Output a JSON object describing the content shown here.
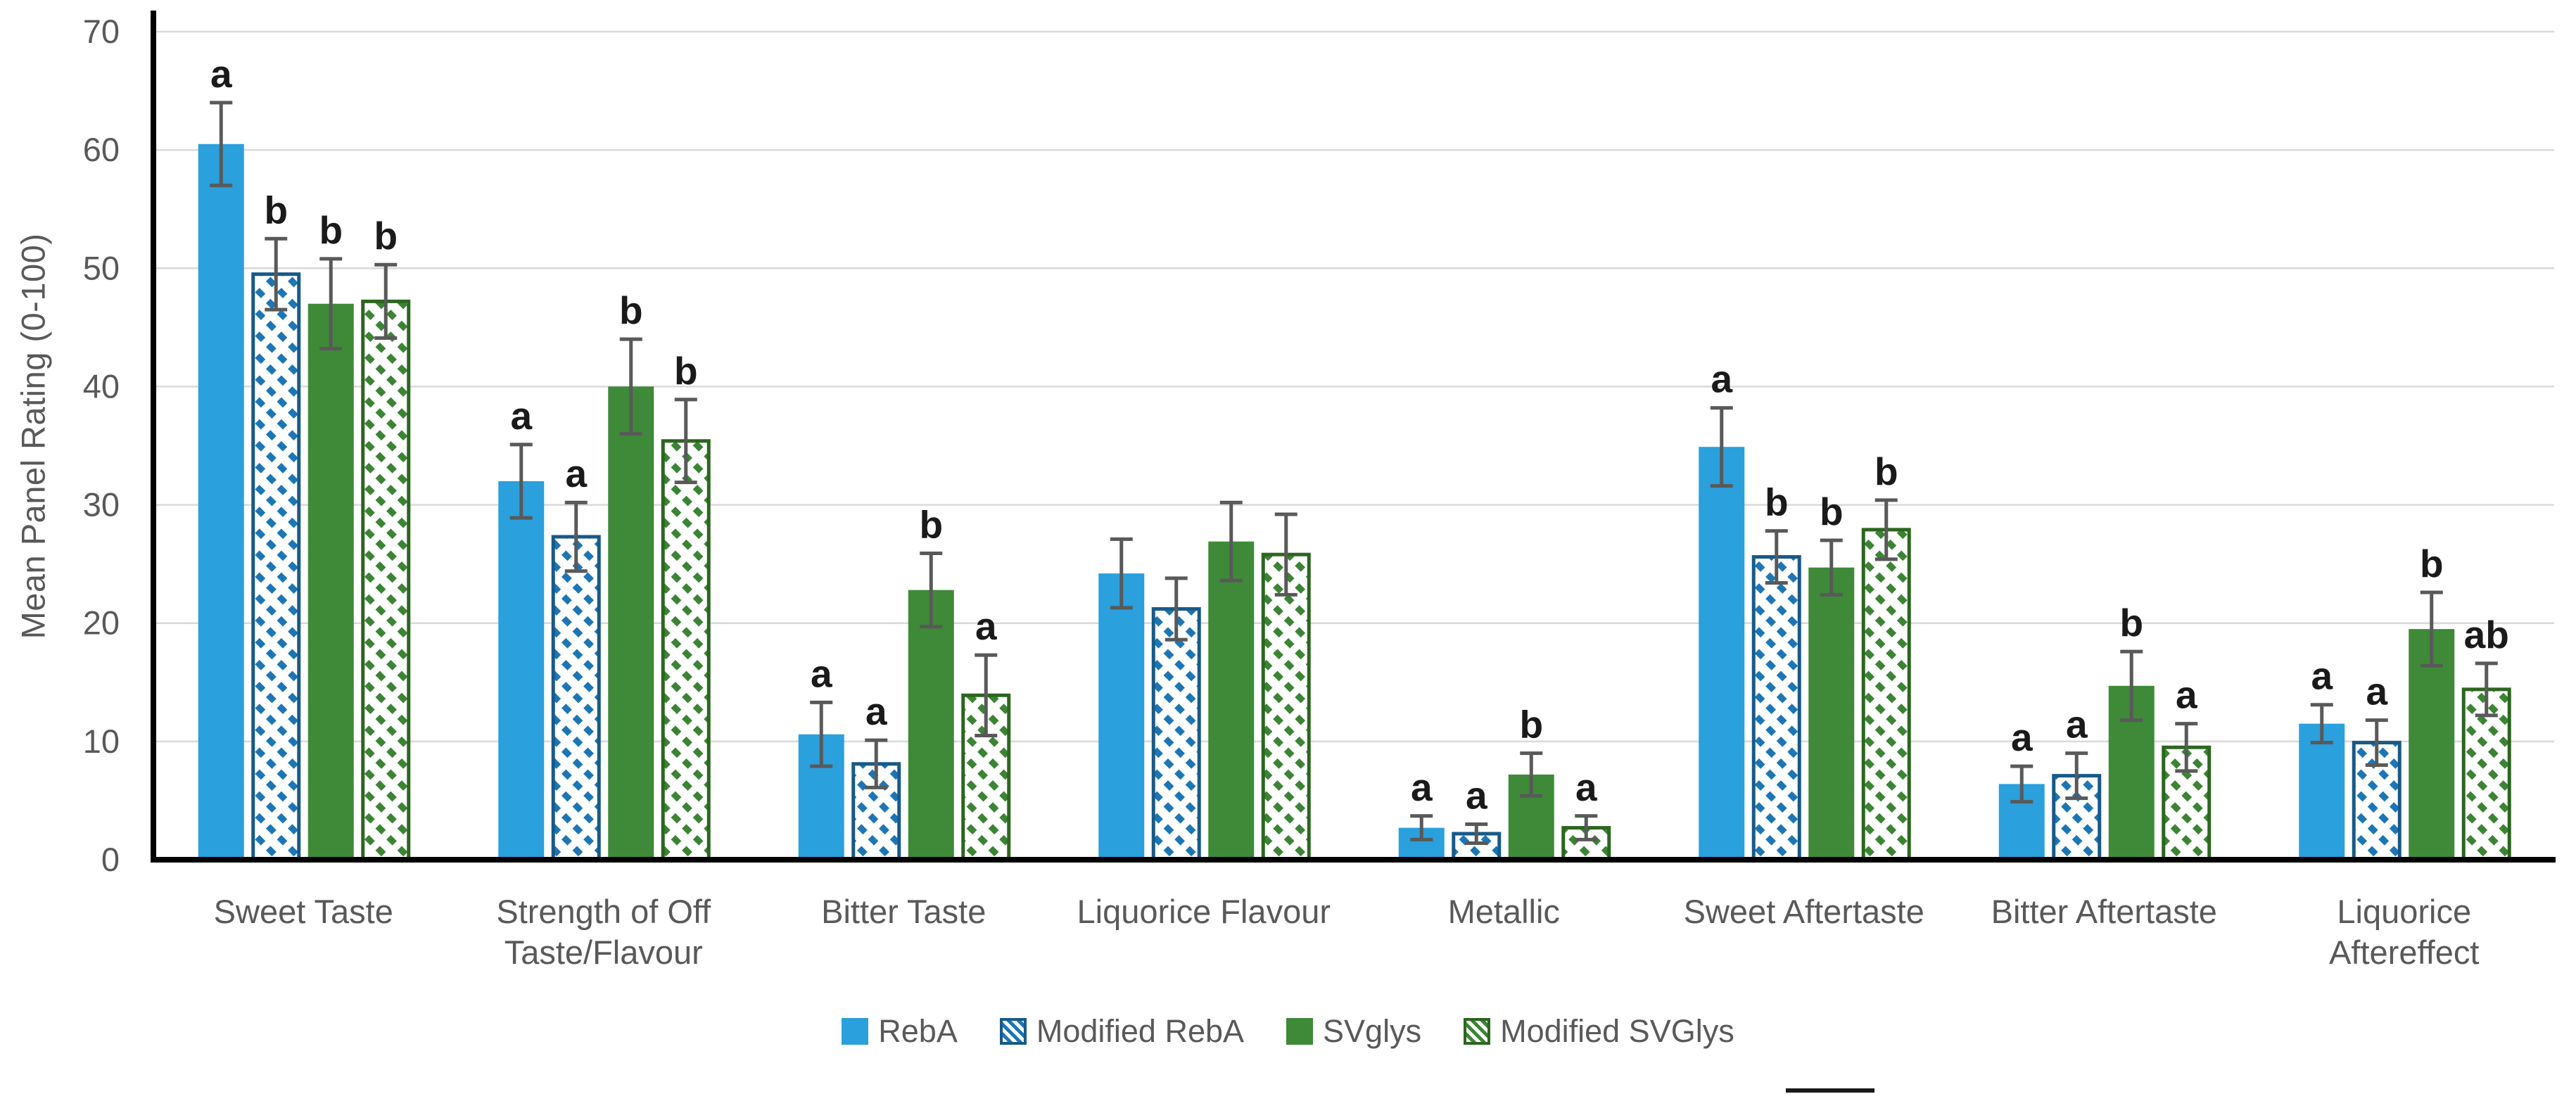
{
  "chart_data": {
    "type": "bar",
    "title": "",
    "xlabel": "",
    "ylabel": "Mean Panel Rating (0-100)",
    "ylim": [
      0,
      70
    ],
    "ytick_step": 10,
    "yticks": [
      0,
      10,
      20,
      30,
      40,
      50,
      60,
      70
    ],
    "grid": true,
    "legend_position": "bottom",
    "categories": [
      "Sweet Taste",
      "Strength of Off\nTaste/Flavour",
      "Bitter Taste",
      "Liquorice Flavour",
      "Metallic",
      "Sweet Aftertaste",
      "Bitter Aftertaste",
      "Liquorice\nAftereffect"
    ],
    "series": [
      {
        "name": "RebA",
        "pattern": "solid",
        "color": "#2AA0DC",
        "border": "#2AA0DC",
        "values": [
          60.5,
          32.0,
          10.6,
          24.2,
          2.7,
          34.9,
          6.4,
          11.5
        ],
        "errors": [
          3.5,
          3.1,
          2.7,
          2.9,
          1.0,
          3.3,
          1.5,
          1.6
        ],
        "letters": [
          "a",
          "a",
          "a",
          "",
          "a",
          "a",
          "a",
          "a"
        ]
      },
      {
        "name": "Modified RebA",
        "pattern": "hatch",
        "color": "#1C76B6",
        "border": "#185A88",
        "values": [
          49.5,
          27.3,
          8.1,
          21.2,
          2.2,
          25.6,
          7.1,
          9.9
        ],
        "errors": [
          3.0,
          2.9,
          2.0,
          2.6,
          0.8,
          2.2,
          1.9,
          1.9
        ],
        "letters": [
          "b",
          "a",
          "a",
          "",
          "a",
          "b",
          "a",
          "a"
        ]
      },
      {
        "name": "SVglys",
        "pattern": "solid",
        "color": "#3E8A38",
        "border": "#3E8A38",
        "values": [
          47.0,
          40.0,
          22.8,
          26.9,
          7.2,
          24.7,
          14.7,
          19.5
        ],
        "errors": [
          3.8,
          4.0,
          3.1,
          3.3,
          1.8,
          2.3,
          2.9,
          3.1
        ],
        "letters": [
          "b",
          "b",
          "b",
          "",
          "b",
          "b",
          "b",
          "b"
        ]
      },
      {
        "name": "Modified SVGlys",
        "pattern": "hatch",
        "color": "#3B8434",
        "border": "#2C661F",
        "values": [
          47.2,
          35.4,
          13.9,
          25.8,
          2.7,
          27.9,
          9.5,
          14.4
        ],
        "errors": [
          3.1,
          3.5,
          3.4,
          3.4,
          1.0,
          2.5,
          2.0,
          2.2
        ],
        "letters": [
          "b",
          "b",
          "a",
          "",
          "a",
          "b",
          "a",
          "ab"
        ]
      }
    ],
    "colors": {
      "error_bar": "#595959",
      "letter": "#1a1a1a",
      "axis": "#000000",
      "gridline": "#D9D9D9",
      "tick_label": "#595959",
      "category_label": "#595959",
      "legend_text": "#595959",
      "background": "#ffffff"
    }
  }
}
